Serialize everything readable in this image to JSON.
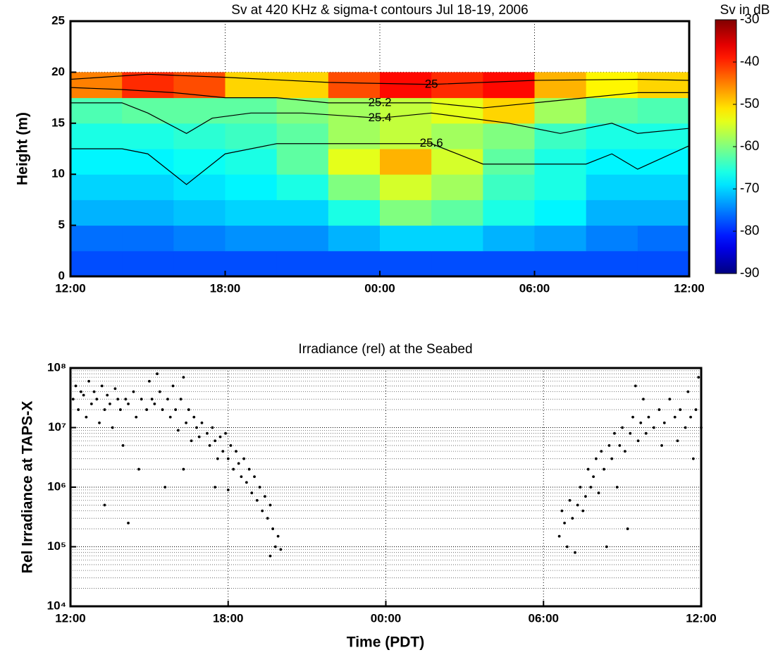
{
  "chart_data": [
    {
      "type": "heatmap",
      "title": "Sv at 420 KHz & sigma-t contours Jul 18-19, 2006",
      "ylabel": "Height (m)",
      "xlim": [
        0,
        24
      ],
      "xticks": [
        {
          "value": 0,
          "label": "12:00"
        },
        {
          "value": 6,
          "label": "18:00"
        },
        {
          "value": 12,
          "label": "00:00"
        },
        {
          "value": 18,
          "label": "06:00"
        },
        {
          "value": 24,
          "label": "12:00"
        }
      ],
      "ylim": [
        0,
        25
      ],
      "yticks": [
        0,
        5,
        10,
        15,
        20,
        25
      ],
      "grid": true,
      "colorbar_title": "Sv in dB",
      "colormap": "jet",
      "zlim": [
        -90,
        -30
      ],
      "zticks": [
        -90,
        -80,
        -70,
        -60,
        -50,
        -40,
        -30
      ],
      "xbins": [
        0,
        2,
        4,
        6,
        8,
        10,
        12,
        14,
        16,
        18,
        20,
        22,
        24
      ],
      "ybins": [
        0,
        2.5,
        5,
        7.5,
        10,
        12.5,
        15,
        17.5,
        20
      ],
      "z": [
        [
          -78,
          -78,
          -78,
          -78,
          -78,
          -78,
          -78,
          -78,
          -78,
          -78,
          -78,
          -78
        ],
        [
          -76,
          -76,
          -75,
          -74,
          -74,
          -72,
          -70,
          -70,
          -72,
          -73,
          -75,
          -76
        ],
        [
          -72,
          -72,
          -71,
          -70,
          -70,
          -66,
          -60,
          -62,
          -66,
          -68,
          -72,
          -72
        ],
        [
          -70,
          -70,
          -69,
          -68,
          -66,
          -60,
          -55,
          -58,
          -64,
          -66,
          -70,
          -70
        ],
        [
          -68,
          -68,
          -67,
          -66,
          -62,
          -54,
          -48,
          -55,
          -62,
          -66,
          -68,
          -68
        ],
        [
          -66,
          -66,
          -65,
          -64,
          -62,
          -58,
          -56,
          -58,
          -60,
          -64,
          -66,
          -66
        ],
        [
          -63,
          -62,
          -62,
          -62,
          -60,
          -58,
          -56,
          -54,
          -50,
          -58,
          -62,
          -63
        ],
        [
          -45,
          -40,
          -42,
          -50,
          -50,
          -42,
          -38,
          -40,
          -38,
          -48,
          -52,
          -50
        ]
      ],
      "contour_color": "#000000",
      "contours": [
        {
          "level": 25.6,
          "x": [
            0,
            2,
            3,
            4.5,
            6,
            8,
            10,
            12,
            14,
            15,
            16,
            18,
            20,
            21,
            22,
            24
          ],
          "y": [
            12.5,
            12.5,
            12,
            9,
            12,
            13,
            13,
            13,
            13,
            12,
            11,
            11,
            11,
            12,
            10.5,
            12.8
          ]
        },
        {
          "level": 25.4,
          "x": [
            0,
            2,
            3,
            4.5,
            5.5,
            7,
            9,
            12,
            14,
            17,
            19,
            20,
            21,
            22,
            24
          ],
          "y": [
            17,
            17,
            16,
            14,
            15.5,
            16,
            16,
            15.5,
            16,
            15,
            14,
            14.5,
            15,
            14,
            14.5
          ]
        },
        {
          "level": 25.2,
          "x": [
            0,
            2,
            4,
            6,
            8,
            10,
            12,
            14,
            16,
            18,
            20,
            22,
            24
          ],
          "y": [
            18.5,
            18.3,
            18,
            17.5,
            17.5,
            17,
            17,
            17,
            16.5,
            17,
            17.5,
            18,
            18
          ]
        },
        {
          "level": 25,
          "x": [
            0,
            3,
            6,
            10,
            14,
            18,
            22,
            24
          ],
          "y": [
            19.3,
            19.8,
            19.5,
            19,
            18.8,
            19.2,
            19.3,
            19.2
          ]
        }
      ]
    },
    {
      "type": "scatter",
      "title": "Irradiance (rel) at the Seabed",
      "xlabel": "Time (PDT)",
      "ylabel": "Rel Irradiance at TAPS-X",
      "xlim": [
        0,
        24
      ],
      "xticks": [
        {
          "value": 0,
          "label": "12:00"
        },
        {
          "value": 6,
          "label": "18:00"
        },
        {
          "value": 12,
          "label": "00:00"
        },
        {
          "value": 18,
          "label": "06:00"
        },
        {
          "value": 24,
          "label": "12:00"
        }
      ],
      "ylog": true,
      "ylim": [
        10000,
        100000000
      ],
      "yticks": [
        {
          "value": 10000,
          "label": "10⁴"
        },
        {
          "value": 100000,
          "label": "10⁵"
        },
        {
          "value": 1000000,
          "label": "10⁶"
        },
        {
          "value": 10000000,
          "label": "10⁷"
        },
        {
          "value": 100000000,
          "label": "10⁸"
        }
      ],
      "yminorticks": [
        20000,
        30000,
        40000,
        50000,
        60000,
        70000,
        80000,
        90000,
        200000,
        300000,
        400000,
        500000,
        600000,
        700000,
        800000,
        900000,
        2000000,
        3000000,
        4000000,
        5000000,
        6000000,
        7000000,
        8000000,
        9000000,
        20000000,
        30000000,
        40000000,
        50000000,
        60000000,
        70000000,
        80000000,
        90000000
      ],
      "grid": true,
      "color": "#000000",
      "x": [
        0.1,
        0.2,
        0.3,
        0.4,
        0.5,
        0.6,
        0.7,
        0.8,
        0.9,
        1.0,
        1.1,
        1.2,
        1.3,
        1.4,
        1.5,
        1.6,
        1.7,
        1.8,
        1.9,
        2.0,
        2.1,
        2.2,
        2.4,
        2.5,
        2.6,
        2.7,
        2.9,
        3.0,
        3.1,
        3.2,
        3.3,
        3.4,
        3.5,
        3.6,
        3.7,
        3.8,
        3.9,
        4.0,
        4.1,
        4.2,
        4.3,
        4.4,
        4.5,
        4.6,
        4.7,
        4.8,
        1.3,
        2.2,
        4.3,
        4.9,
        5.0,
        5.2,
        5.3,
        5.4,
        5.5,
        5.6,
        5.7,
        5.8,
        5.9,
        6.0,
        6.1,
        6.2,
        6.3,
        6.4,
        6.5,
        6.6,
        6.7,
        6.8,
        6.9,
        7.0,
        7.1,
        7.2,
        7.3,
        7.4,
        7.5,
        7.6,
        7.7,
        7.8,
        7.9,
        8.0,
        7.6,
        5.5,
        6.0,
        18.6,
        18.7,
        18.8,
        18.9,
        19.0,
        19.1,
        19.2,
        19.3,
        19.4,
        19.5,
        19.6,
        19.7,
        19.8,
        19.9,
        20.0,
        20.1,
        20.2,
        20.3,
        20.4,
        20.5,
        20.6,
        20.7,
        20.8,
        20.9,
        21.0,
        21.1,
        21.2,
        21.3,
        21.4,
        21.5,
        21.6,
        21.7,
        21.8,
        21.9,
        22.0,
        22.2,
        22.4,
        22.5,
        22.6,
        22.8,
        23.0,
        23.1,
        23.2,
        23.4,
        23.5,
        23.6,
        23.7,
        23.8,
        23.9,
        24.0
      ],
      "values": [
        30000000,
        50000000,
        20000000,
        40000000,
        35000000,
        15000000,
        60000000,
        25000000,
        40000000,
        30000000,
        12000000,
        50000000,
        20000000,
        35000000,
        25000000,
        10000000,
        45000000,
        30000000,
        20000000,
        5000000,
        30000000,
        25000000,
        40000000,
        15000000,
        2000000,
        30000000,
        20000000,
        60000000,
        30000000,
        25000000,
        80000000,
        40000000,
        20000000,
        1000000,
        30000000,
        15000000,
        50000000,
        20000000,
        9000000,
        30000000,
        70000000,
        12000000,
        20000000,
        6000000,
        15000000,
        10000000,
        500000,
        250000,
        2000000,
        7000000,
        12000000,
        8000000,
        5000000,
        10000000,
        6000000,
        3000000,
        7000000,
        4000000,
        8000000,
        3000000,
        5000000,
        2000000,
        4000000,
        2500000,
        1500000,
        3000000,
        1200000,
        2000000,
        800000,
        1500000,
        600000,
        1000000,
        400000,
        700000,
        300000,
        500000,
        200000,
        100000,
        150000,
        90000,
        70000,
        1000000,
        900000,
        150000,
        400000,
        250000,
        100000,
        600000,
        300000,
        80000,
        500000,
        1000000,
        400000,
        700000,
        2000000,
        1000000,
        1500000,
        3000000,
        800000,
        4000000,
        2000000,
        100000,
        5000000,
        3000000,
        8000000,
        1000000,
        5000000,
        10000000,
        4000000,
        200000,
        8000000,
        15000000,
        50000000,
        6000000,
        12000000,
        30000000,
        8000000,
        15000000,
        10000000,
        20000000,
        5000000,
        12000000,
        30000000,
        15000000,
        6000000,
        20000000,
        10000000,
        40000000,
        15000000,
        3000000,
        20000000,
        70000000,
        10000000
      ]
    }
  ]
}
